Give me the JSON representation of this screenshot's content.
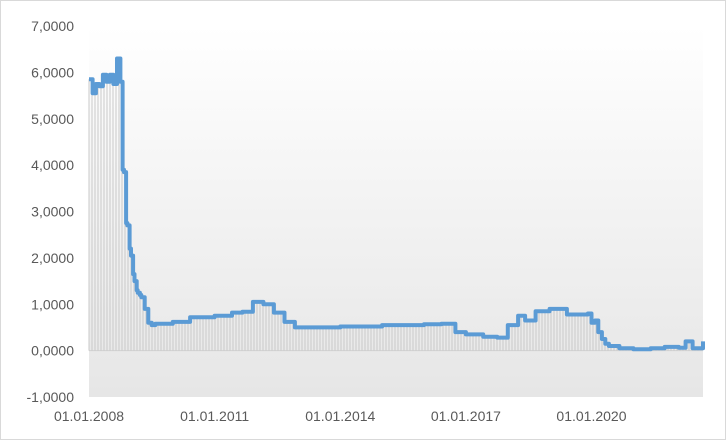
{
  "chart_data": {
    "type": "line",
    "title": "",
    "xlabel": "",
    "ylabel": "",
    "ylim": [
      -1.0,
      7.0
    ],
    "xlim": [
      "2008-01-01",
      "2022-08-31"
    ],
    "y_tick_labels": [
      "-1,0000",
      "0,0000",
      "1,0000",
      "2,0000",
      "3,0000",
      "4,0000",
      "5,0000",
      "6,0000",
      "7,0000"
    ],
    "y_tick_values": [
      -1,
      0,
      1,
      2,
      3,
      4,
      5,
      6,
      7
    ],
    "x_tick_labels": [
      "01.01.2008",
      "01.01.2011",
      "01.01.2014",
      "01.01.2017",
      "01.01.2020"
    ],
    "x_tick_values": [
      "2008-01-01",
      "2011-01-01",
      "2014-01-01",
      "2017-01-01",
      "2020-01-01"
    ],
    "grid": false,
    "colors": {
      "line": "#5b9bd5",
      "fill_lines": "#c9c9c9",
      "plot_background_top": "#ffffff",
      "plot_background_bottom": "#e8e8e8"
    },
    "series": [
      {
        "x": [
          "2008-01-01",
          "2008-02-01",
          "2008-03-01",
          "2008-04-01",
          "2008-05-01",
          "2008-06-01",
          "2008-07-01",
          "2008-08-01",
          "2008-09-01",
          "2008-10-01",
          "2008-10-20",
          "2008-11-01",
          "2008-11-20",
          "2008-12-01",
          "2008-12-20",
          "2009-01-01",
          "2009-01-20",
          "2009-02-01",
          "2009-02-20",
          "2009-03-01",
          "2009-03-20",
          "2009-04-01",
          "2009-05-01",
          "2009-06-01",
          "2009-07-01",
          "2009-08-01",
          "2010-01-01",
          "2010-06-01",
          "2010-09-01",
          "2011-01-01",
          "2011-06-01",
          "2011-09-01",
          "2011-12-01",
          "2012-03-01",
          "2012-06-01",
          "2012-09-01",
          "2012-12-01",
          "2013-06-01",
          "2014-01-01",
          "2014-06-01",
          "2015-01-01",
          "2016-01-01",
          "2016-06-01",
          "2016-10-01",
          "2017-01-01",
          "2017-06-01",
          "2017-10-01",
          "2018-01-01",
          "2018-04-01",
          "2018-06-01",
          "2018-09-01",
          "2019-01-01",
          "2019-06-01",
          "2019-09-01",
          "2019-12-01",
          "2020-01-01",
          "2020-02-01",
          "2020-03-01",
          "2020-04-01",
          "2020-05-01",
          "2020-06-01",
          "2020-09-01",
          "2021-01-01",
          "2021-06-01",
          "2021-10-01",
          "2022-01-01",
          "2022-02-01",
          "2022-04-01",
          "2022-06-01",
          "2022-08-31"
        ],
        "y": [
          5.85,
          5.55,
          5.75,
          5.7,
          5.95,
          5.8,
          5.95,
          5.75,
          6.3,
          5.8,
          3.9,
          3.85,
          2.75,
          2.7,
          2.2,
          2.05,
          1.65,
          1.5,
          1.3,
          1.25,
          1.2,
          1.15,
          0.9,
          0.6,
          0.55,
          0.58,
          0.62,
          0.72,
          0.72,
          0.75,
          0.82,
          0.84,
          1.05,
          1.0,
          0.82,
          0.62,
          0.5,
          0.5,
          0.52,
          0.52,
          0.55,
          0.57,
          0.58,
          0.4,
          0.35,
          0.3,
          0.28,
          0.55,
          0.75,
          0.65,
          0.85,
          0.9,
          0.78,
          0.78,
          0.8,
          0.6,
          0.65,
          0.4,
          0.25,
          0.15,
          0.1,
          0.05,
          0.03,
          0.05,
          0.08,
          0.08,
          0.06,
          0.2,
          0.05,
          0.2
        ]
      }
    ]
  }
}
